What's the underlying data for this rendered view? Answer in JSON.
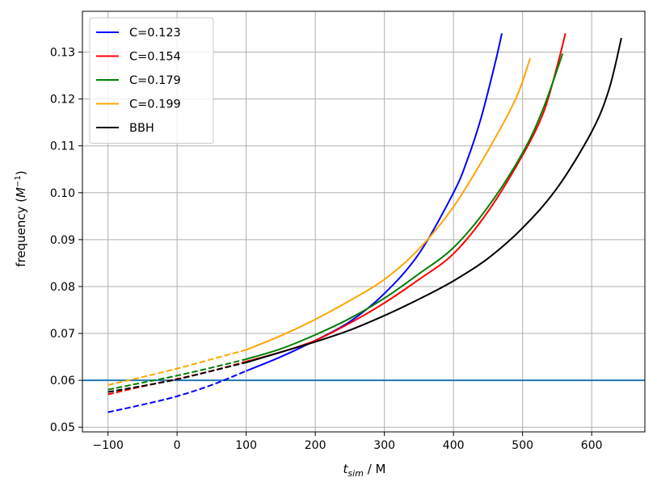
{
  "chart_data": {
    "type": "line",
    "xlabel_main": "t",
    "xlabel_sub": "sim",
    "xlabel_unit": " / M",
    "ylabel_main": "frequency (",
    "ylabel_M": "M",
    "ylabel_exp": "−1",
    "ylabel_close": ")",
    "xlim": [
      -137,
      677
    ],
    "ylim": [
      0.049,
      0.1387
    ],
    "xticks": [
      -100,
      0,
      100,
      200,
      300,
      400,
      500,
      600
    ],
    "xtick_labels": [
      "−100",
      "0",
      "100",
      "200",
      "300",
      "400",
      "500",
      "600"
    ],
    "yticks": [
      0.05,
      0.06,
      0.07,
      0.08,
      0.09,
      0.1,
      0.11,
      0.12,
      0.13
    ],
    "ytick_labels": [
      "0.05",
      "0.06",
      "0.07",
      "0.08",
      "0.09",
      "0.10",
      "0.11",
      "0.12",
      "0.13"
    ],
    "grid": true,
    "legend_position": "top-left",
    "hline": {
      "y": 0.06,
      "color": "#1f77b4"
    },
    "series": [
      {
        "name": "C=0.123",
        "color": "#0000ff",
        "dashed": {
          "x": [
            -100,
            -50,
            0,
            50,
            100
          ],
          "y": [
            0.0532,
            0.0548,
            0.0566,
            0.059,
            0.062
          ]
        },
        "solid": {
          "x": [
            100,
            150,
            200,
            250,
            300,
            350,
            400,
            420,
            440,
            460,
            470
          ],
          "y": [
            0.062,
            0.065,
            0.0685,
            0.0725,
            0.0785,
            0.087,
            0.1,
            0.107,
            0.116,
            0.1275,
            0.134
          ]
        }
      },
      {
        "name": "C=0.154",
        "color": "#ff0000",
        "dashed": {
          "x": [
            -100,
            -50,
            0,
            50,
            100
          ],
          "y": [
            0.057,
            0.0587,
            0.0603,
            0.062,
            0.064
          ]
        },
        "solid": {
          "x": [
            100,
            150,
            200,
            250,
            300,
            350,
            400,
            450,
            500,
            530,
            550,
            562
          ],
          "y": [
            0.064,
            0.066,
            0.0685,
            0.0722,
            0.0765,
            0.0815,
            0.087,
            0.096,
            0.108,
            0.117,
            0.127,
            0.134
          ]
        }
      },
      {
        "name": "C=0.179",
        "color": "#008000",
        "dashed": {
          "x": [
            -100,
            -50,
            0,
            50,
            100
          ],
          "y": [
            0.058,
            0.0595,
            0.061,
            0.0627,
            0.0645
          ]
        },
        "solid": {
          "x": [
            100,
            150,
            200,
            250,
            300,
            350,
            400,
            450,
            500,
            530,
            558
          ],
          "y": [
            0.0645,
            0.0667,
            0.0697,
            0.0732,
            0.0775,
            0.0827,
            0.0883,
            0.097,
            0.1085,
            0.118,
            0.1297
          ]
        }
      },
      {
        "name": "C=0.199",
        "color": "#ffa500",
        "dashed": {
          "x": [
            -100,
            -50,
            0,
            50,
            100
          ],
          "y": [
            0.059,
            0.0607,
            0.0625,
            0.0645,
            0.0665
          ]
        },
        "solid": {
          "x": [
            100,
            150,
            200,
            250,
            300,
            350,
            400,
            450,
            490,
            511
          ],
          "y": [
            0.0665,
            0.0695,
            0.073,
            0.077,
            0.0815,
            0.088,
            0.097,
            0.109,
            0.12,
            0.1287
          ]
        }
      },
      {
        "name": "BBH",
        "color": "#000000",
        "dashed": {
          "x": [
            -100,
            -50,
            0,
            50,
            100
          ],
          "y": [
            0.0575,
            0.0588,
            0.0602,
            0.062,
            0.0638
          ]
        },
        "solid": {
          "x": [
            100,
            150,
            200,
            250,
            300,
            350,
            400,
            450,
            500,
            550,
            600,
            625,
            643
          ],
          "y": [
            0.0638,
            0.066,
            0.0682,
            0.0707,
            0.0738,
            0.0773,
            0.0812,
            0.086,
            0.0925,
            0.101,
            0.113,
            0.122,
            0.133
          ]
        }
      }
    ]
  }
}
